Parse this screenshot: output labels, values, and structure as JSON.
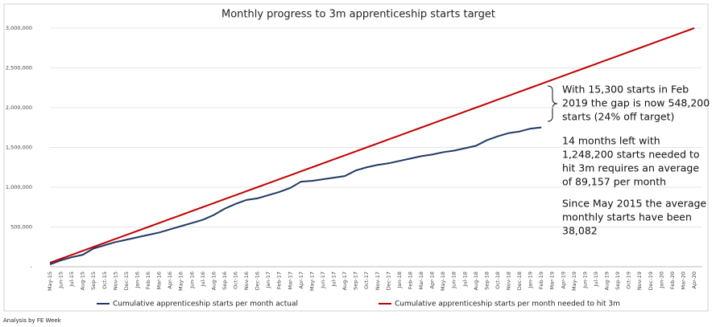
{
  "chart_data": {
    "type": "line",
    "title": "Monthly progress to 3m apprenticeship starts target",
    "categories": [
      "May-15",
      "Jun-15",
      "Jul-15",
      "Aug-15",
      "Sep-15",
      "Oct-15",
      "Nov-15",
      "Dec-15",
      "Jan-16",
      "Feb-16",
      "Mar-16",
      "Apr-16",
      "May-16",
      "Jun-16",
      "Jul-16",
      "Aug-16",
      "Sep-16",
      "Oct-16",
      "Nov-16",
      "Dec-16",
      "Jan-17",
      "Feb-17",
      "Mar-17",
      "Apr-17",
      "May-17",
      "Jun-17",
      "Jul-17",
      "Aug-17",
      "Sep-17",
      "Oct-17",
      "Nov-17",
      "Dec-17",
      "Jan-18",
      "Feb-18",
      "Mar-18",
      "Apr-18",
      "May-18",
      "Jun-18",
      "Jul-18",
      "Aug-18",
      "Sep-18",
      "Oct-18",
      "Nov-18",
      "Dec-18",
      "Jan-19",
      "Feb-19",
      "Mar-19",
      "Apr-19",
      "May-19",
      "Jun-19",
      "Jul-19",
      "Aug-19",
      "Sep-19",
      "Oct-19",
      "Nov-19",
      "Dec-19",
      "Jan-20",
      "Feb-20",
      "Mar-20",
      "Apr-20"
    ],
    "series": [
      {
        "name": "Cumulative apprenticeship starts per month actual",
        "color": "#1f3864",
        "values": [
          30000,
          80000,
          120000,
          150000,
          230000,
          270000,
          310000,
          340000,
          370000,
          400000,
          430000,
          470000,
          510000,
          550000,
          590000,
          650000,
          730000,
          790000,
          840000,
          860000,
          900000,
          940000,
          990000,
          1070000,
          1080000,
          1100000,
          1120000,
          1140000,
          1210000,
          1250000,
          1280000,
          1300000,
          1330000,
          1360000,
          1390000,
          1410000,
          1440000,
          1460000,
          1490000,
          1520000,
          1590000,
          1640000,
          1680000,
          1700000,
          1736500,
          1751800,
          null,
          null,
          null,
          null,
          null,
          null,
          null,
          null,
          null,
          null,
          null,
          null,
          null,
          null
        ]
      },
      {
        "name": "Cumulative apprenticeship starts per month needed to hit 3m",
        "color": "#c00000",
        "values": [
          50000,
          100000,
          150000,
          200000,
          250000,
          300000,
          350000,
          400000,
          450000,
          500000,
          550000,
          600000,
          650000,
          700000,
          750000,
          800000,
          850000,
          900000,
          950000,
          1000000,
          1050000,
          1100000,
          1150000,
          1200000,
          1250000,
          1300000,
          1350000,
          1400000,
          1450000,
          1500000,
          1550000,
          1600000,
          1650000,
          1700000,
          1750000,
          1800000,
          1850000,
          1900000,
          1950000,
          2000000,
          2050000,
          2100000,
          2150000,
          2200000,
          2250000,
          2300000,
          2350000,
          2400000,
          2450000,
          2500000,
          2550000,
          2600000,
          2650000,
          2700000,
          2750000,
          2800000,
          2850000,
          2900000,
          2950000,
          3000000
        ]
      }
    ],
    "ylim": [
      0,
      3000000
    ],
    "yticks": [
      {
        "value": 0,
        "label": "-"
      },
      {
        "value": 500000,
        "label": "500,000"
      },
      {
        "value": 1000000,
        "label": "1,000,000"
      },
      {
        "value": 1500000,
        "label": "1,500,000"
      },
      {
        "value": 2000000,
        "label": "2,000,000"
      },
      {
        "value": 2500000,
        "label": "2,500,000"
      },
      {
        "value": 3000000,
        "label": "3,000,000"
      }
    ],
    "grid": true,
    "legend": "bottom",
    "annotations": [
      "With 15,300 starts in Feb",
      "2019 the gap is now 548,200",
      "starts (24% off target)",
      "14 months left with",
      "1,248,200 starts needed to",
      "hit 3m requires an average",
      "of 89,157 per month",
      "Since May 2015 the average",
      "monthly starts have been",
      "38,082"
    ],
    "source": "Analysis by FE Week"
  }
}
